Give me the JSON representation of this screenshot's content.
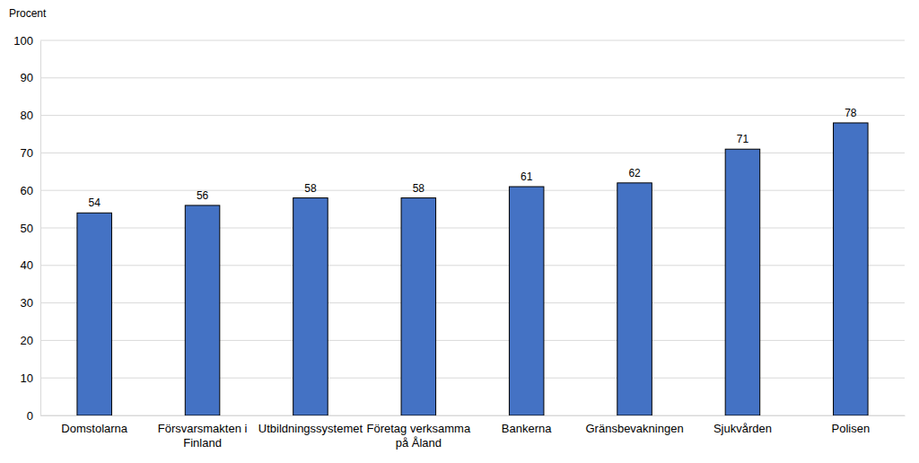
{
  "chart_data": {
    "type": "bar",
    "y_label": "Procent",
    "categories": [
      "Domstolarna",
      "Försvarsmakten i Finland",
      "Utbildningssystemet",
      "Företag verksamma på Åland",
      "Bankerna",
      "Gränsbevakningen",
      "Sjukvården",
      "Polisen"
    ],
    "values": [
      54,
      56,
      58,
      58,
      61,
      62,
      71,
      78
    ],
    "color": "#4472c4",
    "ylim": [
      0,
      100
    ],
    "yticks": [
      0,
      10,
      20,
      30,
      40,
      50,
      60,
      70,
      80,
      90,
      100
    ],
    "grid": true,
    "data_labels": true
  }
}
